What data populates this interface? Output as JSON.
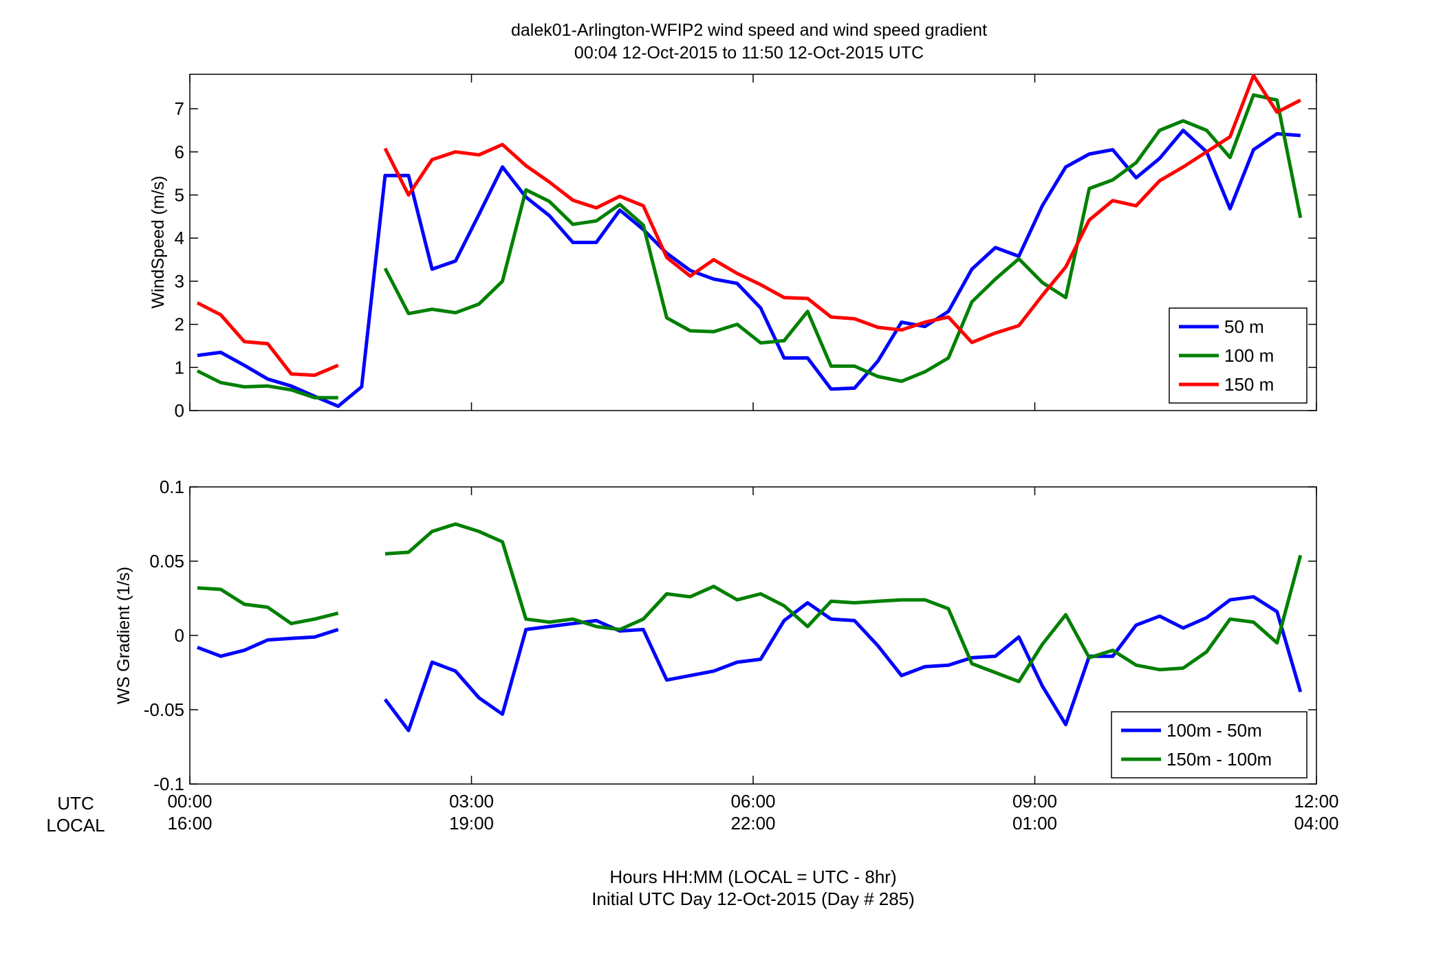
{
  "figure": {
    "title_line1": "dalek01-Arlington-WFIP2  wind speed and wind speed gradient",
    "title_line2": "00:04 12-Oct-2015 to 11:50 12-Oct-2015  UTC",
    "footer_line1": "Hours HH:MM  (LOCAL = UTC - 8hr)",
    "footer_line2": "Initial UTC Day 12-Oct-2015 (Day # 285)",
    "utc_row_label": "UTC",
    "local_row_label": "LOCAL",
    "time_ticks": [
      {
        "hours": 0,
        "utc": "00:00",
        "local": "16:00"
      },
      {
        "hours": 3,
        "utc": "03:00",
        "local": "19:00"
      },
      {
        "hours": 6,
        "utc": "06:00",
        "local": "22:00"
      },
      {
        "hours": 9,
        "utc": "09:00",
        "local": "01:00"
      },
      {
        "hours": 12,
        "utc": "12:00",
        "local": "04:00"
      }
    ]
  },
  "chart_data": [
    {
      "type": "line",
      "title": "",
      "xlabel": "",
      "ylabel": "WindSpeed (m/s)",
      "xlim": [
        0,
        12
      ],
      "ylim": [
        0,
        7.8
      ],
      "yticks": [
        0,
        1,
        2,
        3,
        4,
        5,
        6,
        7
      ],
      "ytick_labels": [
        "0",
        "1",
        "2",
        "3",
        "4",
        "5",
        "6",
        "7"
      ],
      "grid": false,
      "legend_position": "bottom-right",
      "x_hours": [
        0.08,
        0.33,
        0.58,
        0.83,
        1.08,
        1.33,
        1.58,
        1.83,
        2.08,
        2.33,
        2.58,
        2.83,
        3.08,
        3.33,
        3.58,
        3.83,
        4.08,
        4.33,
        4.58,
        4.83,
        5.08,
        5.33,
        5.58,
        5.83,
        6.08,
        6.33,
        6.58,
        6.83,
        7.08,
        7.33,
        7.58,
        7.83,
        8.08,
        8.33,
        8.58,
        8.83,
        9.08,
        9.33,
        9.58,
        9.83,
        10.08,
        10.33,
        10.58,
        10.83,
        11.08,
        11.33,
        11.58,
        11.83
      ],
      "series": [
        {
          "name": "50 m",
          "color": "#0000ff",
          "values": [
            1.28,
            1.35,
            1.05,
            0.73,
            0.57,
            0.33,
            0.1,
            0.55,
            5.45,
            5.45,
            3.28,
            3.47,
            4.55,
            5.65,
            4.95,
            4.52,
            3.9,
            3.9,
            4.65,
            4.2,
            3.65,
            3.25,
            3.05,
            2.95,
            2.38,
            1.22,
            1.22,
            0.5,
            0.52,
            1.15,
            2.05,
            1.95,
            2.3,
            3.28,
            3.78,
            3.58,
            4.75,
            5.65,
            5.95,
            6.05,
            5.4,
            5.85,
            6.5,
            6.0,
            4.68,
            6.05,
            6.42,
            6.38
          ]
        },
        {
          "name": "100 m",
          "color": "#008000",
          "values": [
            0.92,
            0.65,
            0.55,
            0.57,
            0.48,
            0.3,
            0.3,
            null,
            3.3,
            2.25,
            2.35,
            2.27,
            2.47,
            3.0,
            5.12,
            4.85,
            4.32,
            4.4,
            4.78,
            4.3,
            2.15,
            1.85,
            1.83,
            2.0,
            1.57,
            1.62,
            2.3,
            1.03,
            1.03,
            0.79,
            0.68,
            0.9,
            1.22,
            2.52,
            3.05,
            3.52,
            2.97,
            2.62,
            5.15,
            5.35,
            5.75,
            6.5,
            6.72,
            6.5,
            5.87,
            7.32,
            7.2,
            4.47
          ]
        },
        {
          "name": "150 m",
          "color": "#ff0000",
          "values": [
            2.5,
            2.22,
            1.6,
            1.55,
            0.85,
            0.82,
            1.05,
            null,
            6.08,
            5.0,
            5.82,
            6.0,
            5.93,
            6.17,
            5.68,
            5.3,
            4.88,
            4.7,
            4.97,
            4.75,
            3.55,
            3.12,
            3.5,
            3.18,
            2.92,
            2.62,
            2.6,
            2.17,
            2.13,
            1.93,
            1.87,
            2.05,
            2.17,
            1.58,
            1.8,
            1.97,
            2.67,
            3.33,
            4.42,
            4.87,
            4.75,
            5.33,
            5.65,
            6.0,
            6.35,
            7.77,
            6.92,
            7.2
          ]
        }
      ]
    },
    {
      "type": "line",
      "title": "",
      "xlabel": "",
      "ylabel": "WS Gradient (1/s)",
      "xlim": [
        0,
        12
      ],
      "ylim": [
        -0.1,
        0.1
      ],
      "yticks": [
        -0.1,
        -0.05,
        0,
        0.05,
        0.1
      ],
      "ytick_labels": [
        "-0.1",
        "-0.05",
        "0",
        "0.05",
        "0.1"
      ],
      "grid": false,
      "legend_position": "bottom-right",
      "x_hours": [
        0.08,
        0.33,
        0.58,
        0.83,
        1.08,
        1.33,
        1.58,
        1.83,
        2.08,
        2.33,
        2.58,
        2.83,
        3.08,
        3.33,
        3.58,
        3.83,
        4.08,
        4.33,
        4.58,
        4.83,
        5.08,
        5.33,
        5.58,
        5.83,
        6.08,
        6.33,
        6.58,
        6.83,
        7.08,
        7.33,
        7.58,
        7.83,
        8.08,
        8.33,
        8.58,
        8.83,
        9.08,
        9.33,
        9.58,
        9.83,
        10.08,
        10.33,
        10.58,
        10.83,
        11.08,
        11.33,
        11.58,
        11.83
      ],
      "series": [
        {
          "name": "100m - 50m",
          "color": "#0000ff",
          "values": [
            -0.008,
            -0.014,
            -0.01,
            -0.003,
            -0.002,
            -0.001,
            0.004,
            null,
            -0.043,
            -0.064,
            -0.018,
            -0.024,
            -0.042,
            -0.053,
            0.004,
            0.006,
            0.008,
            0.01,
            0.003,
            0.004,
            -0.03,
            -0.027,
            -0.024,
            -0.018,
            -0.016,
            0.01,
            0.022,
            0.011,
            0.01,
            -0.007,
            -0.027,
            -0.021,
            -0.02,
            -0.015,
            -0.014,
            -0.001,
            -0.034,
            -0.06,
            -0.014,
            -0.014,
            0.007,
            0.013,
            0.005,
            0.012,
            0.024,
            0.026,
            0.016,
            -0.038
          ]
        },
        {
          "name": "150m - 100m",
          "color": "#008000",
          "values": [
            0.032,
            0.031,
            0.021,
            0.019,
            0.008,
            0.011,
            0.015,
            null,
            0.055,
            0.056,
            0.07,
            0.075,
            0.07,
            0.063,
            0.011,
            0.009,
            0.011,
            0.006,
            0.004,
            0.011,
            0.028,
            0.026,
            0.033,
            0.024,
            0.028,
            0.02,
            0.006,
            0.023,
            0.022,
            0.023,
            0.024,
            0.024,
            0.018,
            -0.019,
            -0.025,
            -0.031,
            -0.006,
            0.014,
            -0.015,
            -0.01,
            -0.02,
            -0.023,
            -0.022,
            -0.011,
            0.011,
            0.009,
            -0.005,
            0.054
          ]
        }
      ]
    }
  ]
}
